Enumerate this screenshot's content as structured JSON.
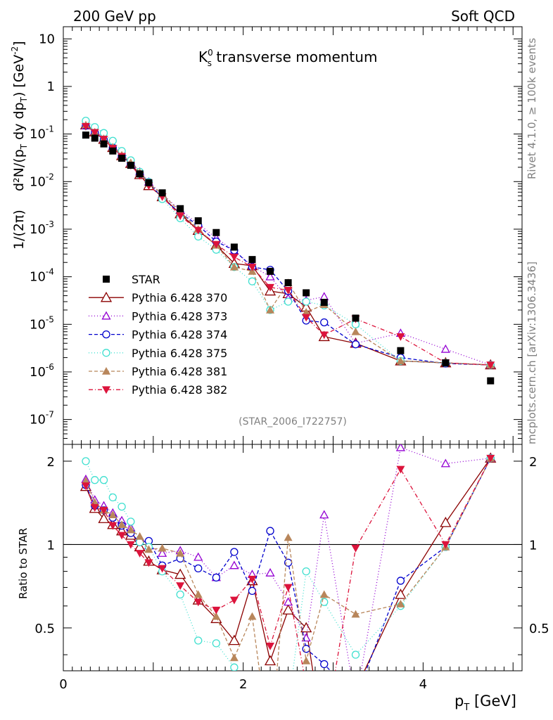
{
  "header": {
    "left": "200 GeV pp",
    "right": "Soft QCD"
  },
  "side": {
    "rivet": "Rivet 4.1.0, ≥ 100k events",
    "mcplots": "mcplots.cern.ch [arXiv:1306.3436]"
  },
  "chart_data": {
    "type": "scatter",
    "title": "K⁰s transverse momentum",
    "title_main": "K",
    "title_sup": "0",
    "title_sub": "s",
    "title_rest": " transverse momentum",
    "analysis": "(STAR_2006_I722757)",
    "xlabel": "p_T [GeV]",
    "xlabel_main": "p",
    "xlabel_sub": "T",
    "xlabel_rest": " [GeV]",
    "ylabel": "1/(2π)  d²N/(p_T dy dp_T) [GeV⁻²]",
    "ylabel_left": "1/(2π)",
    "ylabel_main": "d²N/(p",
    "ylabel_s1": "T",
    "ylabel_mid": " dy dp",
    "ylabel_s2": "T",
    "ylabel_end": ") [GeV",
    "ylabel_sup": "-2",
    "ylabel_close": "]",
    "ratio_ylabel": "Ratio to STAR",
    "xlim": [
      0,
      5.1
    ],
    "ylim_log": [
      3e-08,
      18
    ],
    "ratio_ylim": [
      0.35,
      2.3
    ],
    "x_ticks": [
      "0",
      "2",
      "4"
    ],
    "y_ticks_main": [
      {
        "base": "10",
        "exp": "-7"
      },
      {
        "base": "10",
        "exp": "-6"
      },
      {
        "base": "10",
        "exp": "-5"
      },
      {
        "base": "10",
        "exp": "-4"
      },
      {
        "base": "10",
        "exp": "-3"
      },
      {
        "base": "10",
        "exp": "-2"
      },
      {
        "base": "10",
        "exp": "-1"
      },
      {
        "base": "1",
        "exp": ""
      },
      {
        "base": "10",
        "exp": ""
      }
    ],
    "y_ticks_ratio": [
      "0.5",
      "1",
      "2"
    ],
    "x": [
      0.25,
      0.35,
      0.45,
      0.55,
      0.65,
      0.75,
      0.85,
      0.95,
      1.1,
      1.3,
      1.5,
      1.7,
      1.9,
      2.1,
      2.3,
      2.5,
      2.7,
      2.9,
      3.25,
      3.75,
      4.25,
      4.75
    ],
    "series": [
      {
        "name": "STAR",
        "color": "#000000",
        "marker": "square",
        "dash": "none",
        "values": [
          0.095,
          0.082,
          0.062,
          0.044,
          0.031,
          0.022,
          0.0145,
          0.0095,
          0.0058,
          0.0027,
          0.0015,
          0.00085,
          0.00042,
          0.00023,
          0.00013,
          7.5e-05,
          4.6e-05,
          2.9e-05,
          1.35e-05,
          2.8e-06,
          1.55e-06,
          6.5e-07
        ],
        "ratio": null
      },
      {
        "name": "Pythia 6.428 370",
        "color": "#8b0000",
        "marker": "tri-up-open",
        "dash": "none",
        "values": [
          0.155,
          0.11,
          0.077,
          0.052,
          0.035,
          0.024,
          0.014,
          0.0082,
          0.0048,
          0.0021,
          0.00094,
          0.00046,
          0.00019,
          0.00017,
          5e-05,
          4.4e-05,
          2.3e-05,
          5.5e-06,
          4e-06,
          1.7e-06,
          1.55e-06,
          1.4e-06
        ],
        "ratio": [
          1.62,
          1.35,
          1.24,
          1.18,
          1.12,
          1.08,
          0.98,
          0.87,
          0.81,
          0.78,
          0.63,
          0.54,
          0.45,
          0.74,
          0.38,
          0.58,
          0.5,
          0.19,
          0.3,
          0.66,
          1.2,
          2.05
        ]
      },
      {
        "name": "Pythia 6.428 373",
        "color": "#9400d3",
        "marker": "tri-up-open-small",
        "dash": "1,3",
        "values": [
          0.15,
          0.115,
          0.082,
          0.055,
          0.037,
          0.025,
          0.016,
          0.0098,
          0.0054,
          0.0025,
          0.0013,
          0.00065,
          0.00035,
          0.00017,
          0.0001,
          3.5e-05,
          3.2e-05,
          3.8e-05,
          4e-06,
          6.5e-06,
          3e-06,
          1.4e-06
        ],
        "ratio": [
          1.72,
          1.45,
          1.38,
          1.3,
          1.22,
          1.15,
          1.06,
          0.99,
          0.93,
          0.95,
          0.9,
          0.76,
          0.84,
          0.78,
          0.79,
          0.62,
          0.46,
          1.28,
          0.27,
          2.24,
          1.96,
          2.05
        ]
      },
      {
        "name": "Pythia 6.428 374",
        "color": "#0000cd",
        "marker": "circle-open",
        "dash": "5,3",
        "values": [
          0.15,
          0.108,
          0.076,
          0.052,
          0.035,
          0.024,
          0.0148,
          0.0098,
          0.0045,
          0.0022,
          0.0012,
          0.00055,
          0.00036,
          0.00016,
          0.00014,
          5e-05,
          1.2e-05,
          1.1e-05,
          3.8e-06,
          2e-06,
          1.5e-06,
          1.4e-06
        ],
        "ratio": [
          1.64,
          1.38,
          1.33,
          1.25,
          1.17,
          1.1,
          1.02,
          1.03,
          0.84,
          0.89,
          0.82,
          0.76,
          0.94,
          0.68,
          1.12,
          0.86,
          0.42,
          0.37,
          0.28,
          0.74,
          0.98,
          2.05
        ]
      },
      {
        "name": "Pythia 6.428 375",
        "color": "#40e0d0",
        "marker": "circle-open",
        "dash": "1,3",
        "values": [
          0.19,
          0.14,
          0.105,
          0.072,
          0.044,
          0.028,
          0.016,
          0.0098,
          0.0043,
          0.0017,
          0.0007,
          0.00037,
          0.00016,
          8e-05,
          2e-05,
          3e-05,
          3e-05,
          2.5e-05,
          1e-05,
          1.7e-06,
          1.55e-06,
          1.4e-06
        ],
        "ratio": [
          2.0,
          1.71,
          1.71,
          1.48,
          1.37,
          1.21,
          1.02,
          0.98,
          0.8,
          0.66,
          0.45,
          0.44,
          0.36,
          0.3,
          0.2,
          0.26,
          0.8,
          0.62,
          0.4,
          0.6,
          0.98,
          2.05
        ]
      },
      {
        "name": "Pythia 6.428 381",
        "color": "#b8865b",
        "marker": "tri-up-filled",
        "dash": "5,3",
        "values": [
          0.155,
          0.11,
          0.08,
          0.053,
          0.036,
          0.025,
          0.0155,
          0.0092,
          0.0055,
          0.0023,
          0.001,
          0.00046,
          0.00016,
          0.00013,
          2e-05,
          7.5e-05,
          1.8e-05,
          2.6e-05,
          7e-06,
          1.7e-06,
          1.55e-06,
          1.4e-06
        ],
        "ratio": [
          1.7,
          1.42,
          1.33,
          1.28,
          1.18,
          1.13,
          1.07,
          0.96,
          0.97,
          0.93,
          0.66,
          0.55,
          0.39,
          0.55,
          0.18,
          1.06,
          0.38,
          0.66,
          0.56,
          0.61,
          0.98,
          2.05
        ]
      },
      {
        "name": "Pythia 6.428 382",
        "color": "#dc143c",
        "marker": "tri-down-filled",
        "dash": "6,3,1,3",
        "values": [
          0.145,
          0.108,
          0.078,
          0.05,
          0.034,
          0.022,
          0.0135,
          0.0082,
          0.0048,
          0.0019,
          0.00095,
          0.00048,
          0.00026,
          0.00016,
          6e-05,
          5.2e-05,
          1.4e-05,
          6e-06,
          1.3e-05,
          5.5e-06,
          1.55e-06,
          1.4e-06
        ],
        "ratio": [
          1.63,
          1.36,
          1.33,
          1.17,
          1.08,
          1.0,
          0.93,
          0.86,
          0.82,
          0.71,
          0.62,
          0.58,
          0.63,
          0.75,
          0.43,
          0.7,
          0.31,
          0.2,
          0.97,
          1.87,
          1.0,
          2.05
        ]
      }
    ]
  }
}
